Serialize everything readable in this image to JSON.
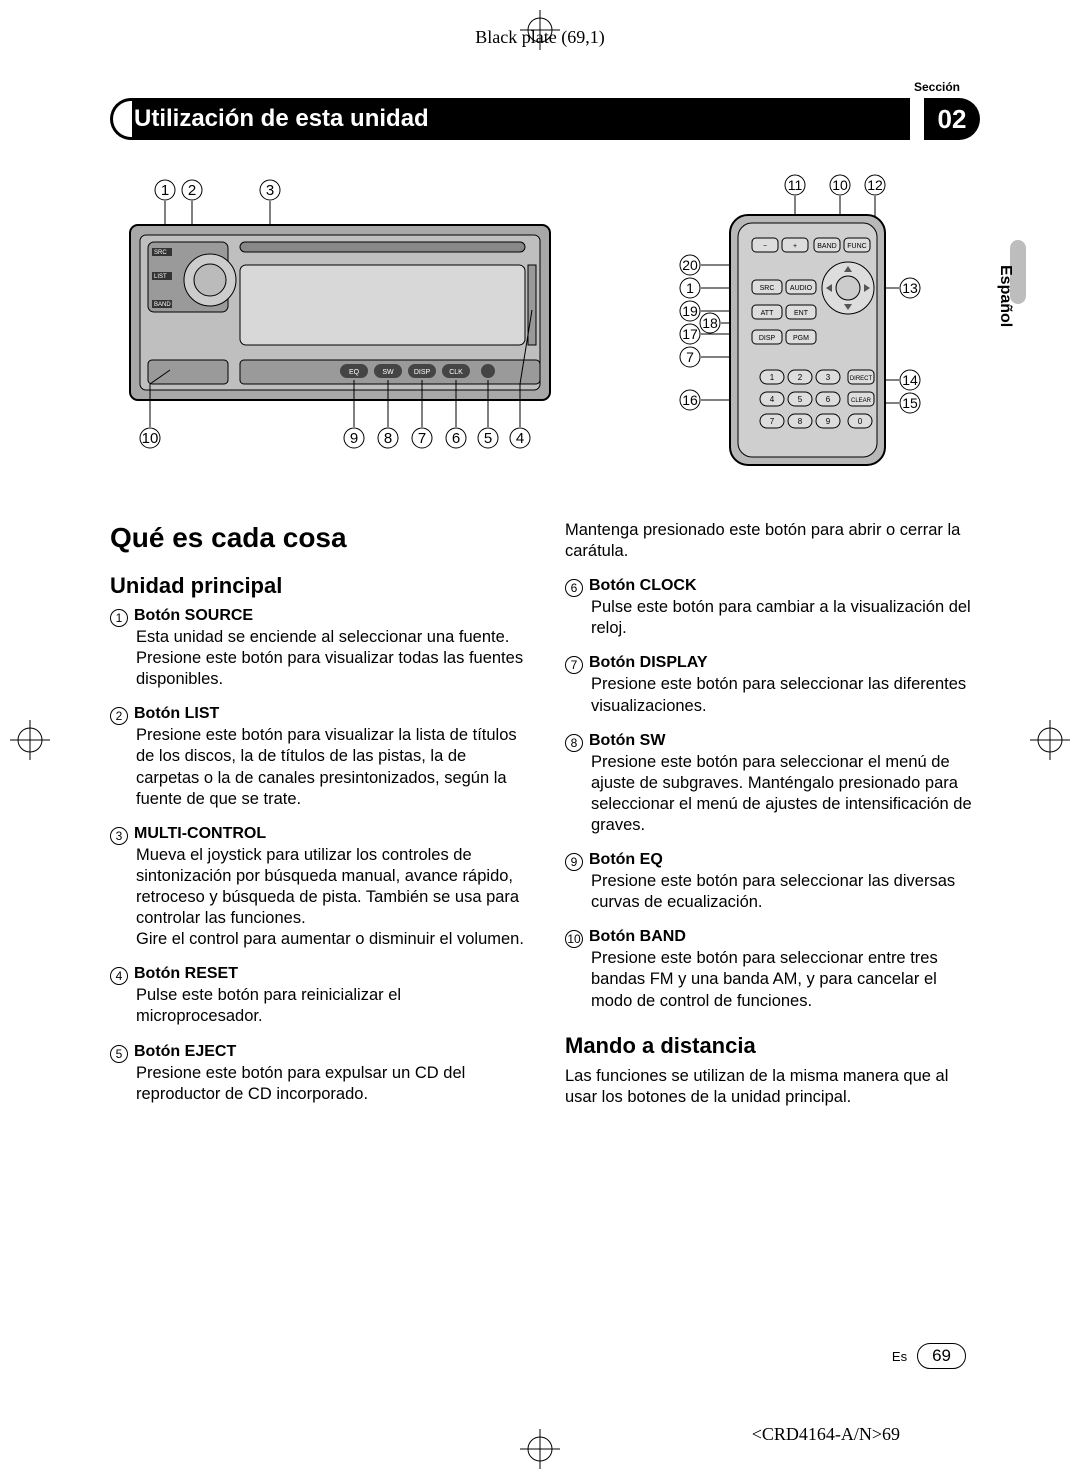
{
  "print": {
    "black_plate": "Black plate (69,1)",
    "doc_code": "<CRD4164-A/N>69"
  },
  "header": {
    "seccion_label": "Sección",
    "title": "Utilización de esta unidad",
    "section_num": "02"
  },
  "side_tab": "Español",
  "headings": {
    "que_es": "Qué es cada cosa",
    "unidad": "Unidad principal",
    "mando": "Mando a distancia"
  },
  "items_col1": [
    {
      "num": "1",
      "title": "Botón SOURCE",
      "body": "Esta unidad se enciende al seleccionar una fuente. Presione este botón para visualizar todas las fuentes disponibles."
    },
    {
      "num": "2",
      "title": "Botón LIST",
      "body": "Presione este botón para visualizar la lista de títulos de los discos, la de títulos de las pistas, la de carpetas o la de canales presintonizados, según la fuente de que se trate."
    },
    {
      "num": "3",
      "title": "MULTI-CONTROL",
      "body": "Mueva el joystick para utilizar los controles de sintonización por búsqueda manual, avance rápido, retroceso y búsqueda de pista. También se usa para controlar las funciones.\nGire el control para aumentar o disminuir el volumen."
    },
    {
      "num": "4",
      "title": "Botón RESET",
      "body": "Pulse este botón para reinicializar el microprocesador."
    },
    {
      "num": "5",
      "title": "Botón EJECT",
      "body": "Presione este botón para expulsar un CD del reproductor de CD incorporado."
    }
  ],
  "col2_intro": "Mantenga presionado este botón para abrir o cerrar la carátula.",
  "items_col2": [
    {
      "num": "6",
      "title": "Botón CLOCK",
      "body": "Pulse este botón para cambiar a la visualización del reloj."
    },
    {
      "num": "7",
      "title": "Botón DISPLAY",
      "body": "Presione este botón para seleccionar las diferentes visualizaciones."
    },
    {
      "num": "8",
      "title": "Botón SW",
      "body": "Presione este botón para seleccionar el menú de ajuste de subgraves. Manténgalo presionado para seleccionar el menú de ajustes de intensificación de graves."
    },
    {
      "num": "9",
      "title": "Botón EQ",
      "body": "Presione este botón para seleccionar las diversas curvas de ecualización."
    },
    {
      "num": "10",
      "title": "Botón BAND",
      "body": "Presione este botón para seleccionar entre tres bandas FM y una banda AM, y para cancelar el modo de control de funciones."
    }
  ],
  "mando_body": "Las funciones se utilizan de la misma manera que al usar los botones de la unidad principal.",
  "footer": {
    "lang": "Es",
    "page": "69"
  },
  "diagram_main": {
    "callouts_top": [
      "1",
      "2",
      "3"
    ],
    "callouts_bottom": [
      "10",
      "9",
      "8",
      "7",
      "6",
      "5",
      "4"
    ],
    "btn_labels": [
      "EQ",
      "SW",
      "DISP",
      "CLK"
    ],
    "side_labels": [
      "SRC",
      "LIST",
      "BAND"
    ]
  },
  "diagram_remote": {
    "callouts": {
      "c1": "1",
      "c7": "7",
      "c10": "10",
      "c11": "11",
      "c12": "12",
      "c13": "13",
      "c14": "14",
      "c15": "15",
      "c16": "16",
      "c17": "17",
      "c18": "18",
      "c19": "19",
      "c20": "20"
    },
    "top_row": [
      "BAND",
      "FUNC"
    ],
    "row_src": [
      "SRC",
      "AUDIO"
    ],
    "row_att": [
      "ATT",
      "ENT"
    ],
    "row_disp": [
      "DISP",
      "PGM"
    ],
    "numpad": [
      "1",
      "2",
      "3",
      "4",
      "5",
      "6",
      "7",
      "8",
      "9",
      "0"
    ],
    "side_btns": [
      "DIRECT",
      "CLEAR"
    ]
  }
}
